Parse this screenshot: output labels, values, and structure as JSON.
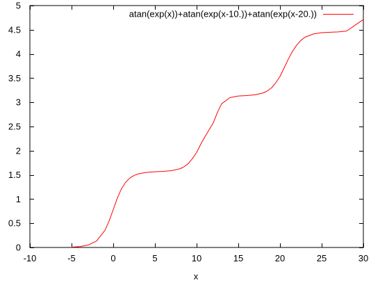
{
  "chart_data": {
    "type": "line",
    "xlabel": "x",
    "ylabel": "",
    "xlim": [
      -10,
      30
    ],
    "ylim": [
      0,
      5
    ],
    "xticks": [
      "-10",
      "-5",
      "0",
      "5",
      "10",
      "15",
      "20",
      "25",
      "30"
    ],
    "yticks": [
      "0",
      "0.5",
      "1",
      "1.5",
      "2",
      "2.5",
      "3",
      "3.5",
      "4",
      "4.5",
      "5"
    ],
    "grid": false,
    "legend_position": "top-right",
    "series": [
      {
        "name": "atan(exp(x))+atan(exp(x-10.))+atan(exp(x-20.))",
        "color": "#ff0000",
        "x": [
          -5,
          -4,
          -3,
          -2,
          -1,
          -0.5,
          0,
          0.5,
          1,
          1.5,
          2,
          2.5,
          3,
          4,
          5,
          6,
          7,
          8,
          8.5,
          9,
          9.5,
          10,
          10.5,
          11,
          11.5,
          12,
          12.5,
          13,
          14,
          15,
          16,
          17,
          18,
          18.5,
          19,
          19.5,
          20,
          20.5,
          21,
          21.5,
          22,
          22.5,
          23,
          24,
          25,
          26,
          27,
          28,
          30
        ],
        "y": [
          0.007,
          0.018,
          0.05,
          0.134,
          0.353,
          0.545,
          0.785,
          1.025,
          1.218,
          1.351,
          1.436,
          1.488,
          1.521,
          1.552,
          1.564,
          1.573,
          1.588,
          1.627,
          1.668,
          1.734,
          1.838,
          1.963,
          2.135,
          2.29,
          2.431,
          2.577,
          2.794,
          2.97,
          3.098,
          3.13,
          3.14,
          3.156,
          3.195,
          3.238,
          3.301,
          3.405,
          3.534,
          3.712,
          3.893,
          4.054,
          4.182,
          4.279,
          4.346,
          4.413,
          4.439,
          4.448,
          4.456,
          4.474,
          4.712
        ]
      }
    ]
  }
}
